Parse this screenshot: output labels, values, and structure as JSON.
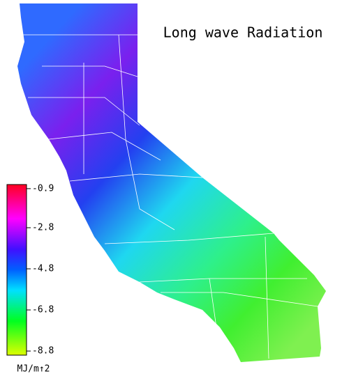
{
  "title": "Long wave Radiation",
  "colorbar": {
    "unit": "MJ/m↑2",
    "lim": [
      -9.0,
      -0.7
    ],
    "ticks": [
      -0.9,
      -2.8,
      -4.8,
      -6.8,
      -8.8
    ]
  }
}
